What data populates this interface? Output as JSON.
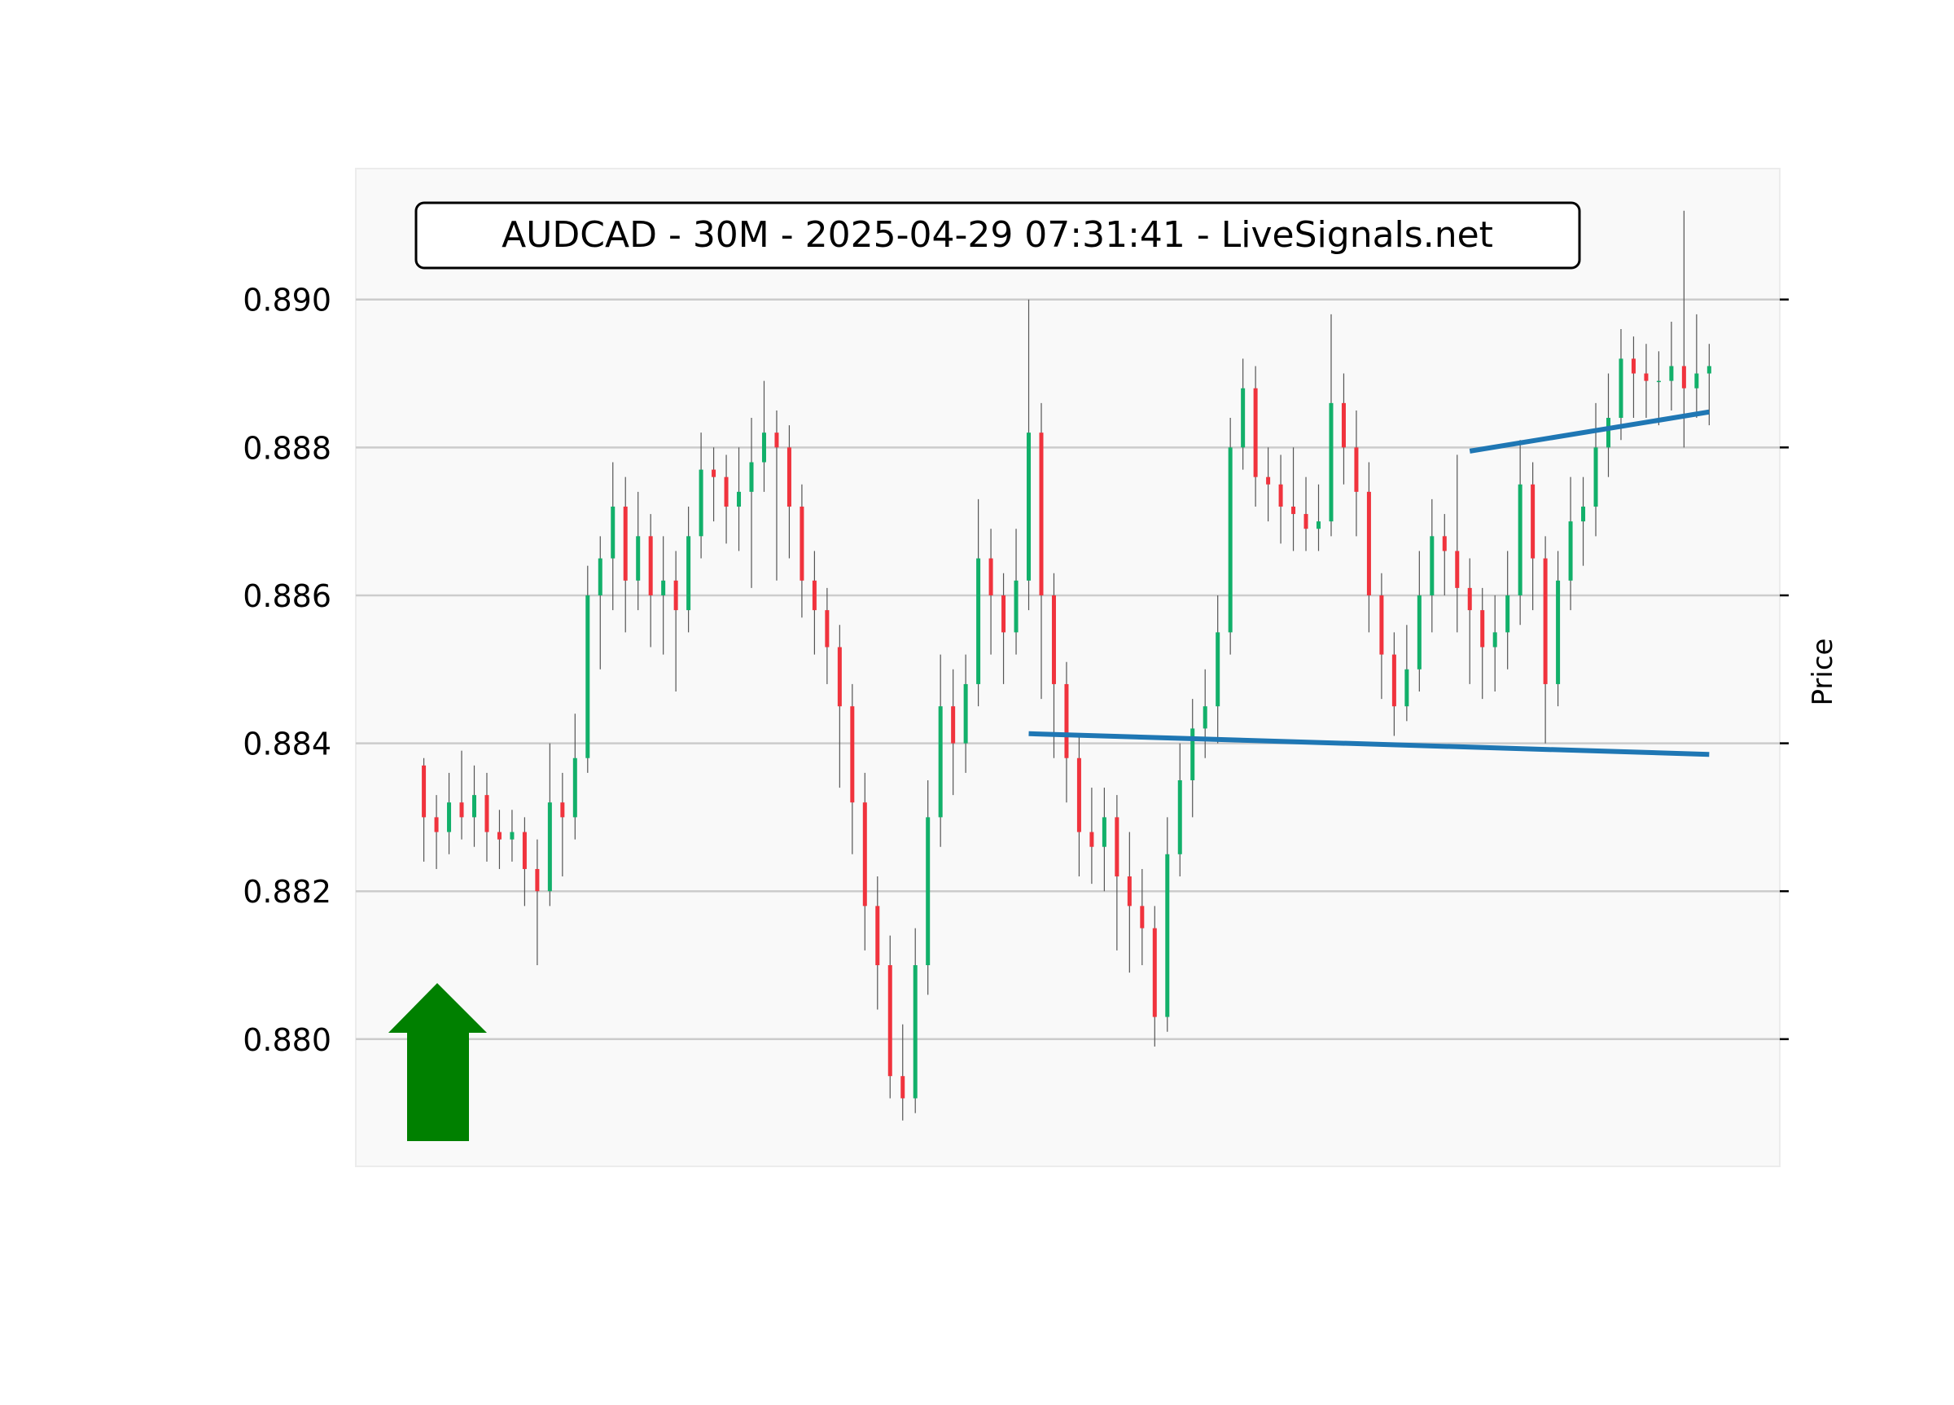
{
  "chart_data": {
    "type": "candlestick",
    "title": "AUDCAD - 30M - 2025-04-29 07:31:41 - LiveSignals.net",
    "xlabel": "",
    "ylabel": "Price",
    "ylim": [
      0.87828,
      0.89177
    ],
    "xlim": [
      -5.4,
      107.6
    ],
    "grid": true,
    "yticks": [
      0.88,
      0.882,
      0.884,
      0.886,
      0.888,
      0.89
    ],
    "ytick_labels": [
      "0.880",
      "0.882",
      "0.884",
      "0.886",
      "0.888",
      "0.890"
    ],
    "colors": {
      "up": "#12b06a",
      "down": "#f0333d",
      "wick": "#555555",
      "trendline": "#1f77b4",
      "signal_arrow": "#008000",
      "background": "#f9f9f9",
      "grid": "#cccccc"
    },
    "signal": {
      "direction": "up",
      "icon": "up-arrow-icon"
    },
    "candles_ohlc": [
      [
        0.8837,
        0.8838,
        0.8824,
        0.883
      ],
      [
        0.883,
        0.8833,
        0.8823,
        0.8828
      ],
      [
        0.8828,
        0.8836,
        0.8825,
        0.8832
      ],
      [
        0.8832,
        0.8839,
        0.8827,
        0.883
      ],
      [
        0.883,
        0.8837,
        0.8826,
        0.8833
      ],
      [
        0.8833,
        0.8836,
        0.8824,
        0.8828
      ],
      [
        0.8828,
        0.8831,
        0.8823,
        0.8827
      ],
      [
        0.8827,
        0.8831,
        0.8824,
        0.8828
      ],
      [
        0.8828,
        0.883,
        0.8818,
        0.8823
      ],
      [
        0.8823,
        0.8827,
        0.881,
        0.882
      ],
      [
        0.882,
        0.884,
        0.8818,
        0.8832
      ],
      [
        0.8832,
        0.8836,
        0.8822,
        0.883
      ],
      [
        0.883,
        0.8844,
        0.8827,
        0.8838
      ],
      [
        0.8838,
        0.8864,
        0.8836,
        0.886
      ],
      [
        0.886,
        0.8868,
        0.885,
        0.8865
      ],
      [
        0.8865,
        0.8878,
        0.8858,
        0.8872
      ],
      [
        0.8872,
        0.8876,
        0.8855,
        0.8862
      ],
      [
        0.8862,
        0.8874,
        0.8858,
        0.8868
      ],
      [
        0.8868,
        0.8871,
        0.8853,
        0.886
      ],
      [
        0.886,
        0.8868,
        0.8852,
        0.8862
      ],
      [
        0.8862,
        0.8866,
        0.8847,
        0.8858
      ],
      [
        0.8858,
        0.8872,
        0.8855,
        0.8868
      ],
      [
        0.8868,
        0.8882,
        0.8865,
        0.8877
      ],
      [
        0.8877,
        0.888,
        0.887,
        0.8876
      ],
      [
        0.8876,
        0.8879,
        0.8867,
        0.8872
      ],
      [
        0.8872,
        0.888,
        0.8866,
        0.8874
      ],
      [
        0.8874,
        0.8884,
        0.8861,
        0.8878
      ],
      [
        0.8878,
        0.8889,
        0.8874,
        0.8882
      ],
      [
        0.8882,
        0.8885,
        0.8862,
        0.888
      ],
      [
        0.888,
        0.8883,
        0.8865,
        0.8872
      ],
      [
        0.8872,
        0.8875,
        0.8857,
        0.8862
      ],
      [
        0.8862,
        0.8866,
        0.8852,
        0.8858
      ],
      [
        0.8858,
        0.8861,
        0.8848,
        0.8853
      ],
      [
        0.8853,
        0.8856,
        0.8834,
        0.8845
      ],
      [
        0.8845,
        0.8848,
        0.8825,
        0.8832
      ],
      [
        0.8832,
        0.8836,
        0.8812,
        0.8818
      ],
      [
        0.8818,
        0.8822,
        0.8804,
        0.881
      ],
      [
        0.881,
        0.8814,
        0.8792,
        0.8795
      ],
      [
        0.8795,
        0.8802,
        0.8789,
        0.8792
      ],
      [
        0.8792,
        0.8815,
        0.879,
        0.881
      ],
      [
        0.881,
        0.8835,
        0.8806,
        0.883
      ],
      [
        0.883,
        0.8852,
        0.8826,
        0.8845
      ],
      [
        0.8845,
        0.885,
        0.8833,
        0.884
      ],
      [
        0.884,
        0.8852,
        0.8836,
        0.8848
      ],
      [
        0.8848,
        0.8873,
        0.8845,
        0.8865
      ],
      [
        0.8865,
        0.8869,
        0.8852,
        0.886
      ],
      [
        0.886,
        0.8863,
        0.8848,
        0.8855
      ],
      [
        0.8855,
        0.8869,
        0.8852,
        0.8862
      ],
      [
        0.8862,
        0.89,
        0.8858,
        0.8882
      ],
      [
        0.8882,
        0.8886,
        0.8846,
        0.886
      ],
      [
        0.886,
        0.8863,
        0.8838,
        0.8848
      ],
      [
        0.8848,
        0.8851,
        0.8832,
        0.8838
      ],
      [
        0.8838,
        0.8841,
        0.8822,
        0.8828
      ],
      [
        0.8828,
        0.8834,
        0.8821,
        0.8826
      ],
      [
        0.8826,
        0.8834,
        0.882,
        0.883
      ],
      [
        0.883,
        0.8833,
        0.8812,
        0.8822
      ],
      [
        0.8822,
        0.8828,
        0.8809,
        0.8818
      ],
      [
        0.8818,
        0.8823,
        0.881,
        0.8815
      ],
      [
        0.8815,
        0.8818,
        0.8799,
        0.8803
      ],
      [
        0.8803,
        0.883,
        0.8801,
        0.8825
      ],
      [
        0.8825,
        0.884,
        0.8822,
        0.8835
      ],
      [
        0.8835,
        0.8846,
        0.883,
        0.8842
      ],
      [
        0.8842,
        0.885,
        0.8838,
        0.8845
      ],
      [
        0.8845,
        0.886,
        0.884,
        0.8855
      ],
      [
        0.8855,
        0.8884,
        0.8852,
        0.888
      ],
      [
        0.888,
        0.8892,
        0.8877,
        0.8888
      ],
      [
        0.8888,
        0.8891,
        0.8872,
        0.8876
      ],
      [
        0.8876,
        0.888,
        0.887,
        0.8875
      ],
      [
        0.8875,
        0.8879,
        0.8867,
        0.8872
      ],
      [
        0.8872,
        0.888,
        0.8866,
        0.8871
      ],
      [
        0.8871,
        0.8876,
        0.8866,
        0.8869
      ],
      [
        0.8869,
        0.8875,
        0.8866,
        0.887
      ],
      [
        0.887,
        0.8898,
        0.8868,
        0.8886
      ],
      [
        0.8886,
        0.889,
        0.8875,
        0.888
      ],
      [
        0.888,
        0.8885,
        0.8868,
        0.8874
      ],
      [
        0.8874,
        0.8878,
        0.8855,
        0.886
      ],
      [
        0.886,
        0.8863,
        0.8846,
        0.8852
      ],
      [
        0.8852,
        0.8855,
        0.8841,
        0.8845
      ],
      [
        0.8845,
        0.8856,
        0.8843,
        0.885
      ],
      [
        0.885,
        0.8866,
        0.8847,
        0.886
      ],
      [
        0.886,
        0.8873,
        0.8855,
        0.8868
      ],
      [
        0.8868,
        0.8871,
        0.886,
        0.8866
      ],
      [
        0.8866,
        0.8879,
        0.8855,
        0.8861
      ],
      [
        0.8861,
        0.8865,
        0.8848,
        0.8858
      ],
      [
        0.8858,
        0.8861,
        0.8846,
        0.8853
      ],
      [
        0.8853,
        0.886,
        0.8847,
        0.8855
      ],
      [
        0.8855,
        0.8866,
        0.885,
        0.886
      ],
      [
        0.886,
        0.8881,
        0.8856,
        0.8875
      ],
      [
        0.8875,
        0.8878,
        0.8858,
        0.8865
      ],
      [
        0.8865,
        0.8868,
        0.884,
        0.8848
      ],
      [
        0.8848,
        0.8866,
        0.8845,
        0.8862
      ],
      [
        0.8862,
        0.8876,
        0.8858,
        0.887
      ],
      [
        0.887,
        0.8876,
        0.8864,
        0.8872
      ],
      [
        0.8872,
        0.8886,
        0.8868,
        0.888
      ],
      [
        0.888,
        0.889,
        0.8876,
        0.8884
      ],
      [
        0.8884,
        0.8896,
        0.8881,
        0.8892
      ],
      [
        0.8892,
        0.8895,
        0.8884,
        0.889
      ],
      [
        0.889,
        0.8894,
        0.8884,
        0.8889
      ],
      [
        0.8889,
        0.8893,
        0.8883,
        0.8889
      ],
      [
        0.8889,
        0.8897,
        0.8885,
        0.8891
      ],
      [
        0.8891,
        0.8912,
        0.888,
        0.8888
      ],
      [
        0.8888,
        0.8898,
        0.8884,
        0.889
      ],
      [
        0.889,
        0.8894,
        0.8883,
        0.8891
      ]
    ],
    "trendlines": [
      {
        "kind": "support",
        "from": [
          48,
          0.88413
        ],
        "to": [
          102,
          0.88385
        ]
      },
      {
        "kind": "resistance",
        "from": [
          83,
          0.88795
        ],
        "to": [
          102,
          0.88848
        ]
      }
    ]
  }
}
